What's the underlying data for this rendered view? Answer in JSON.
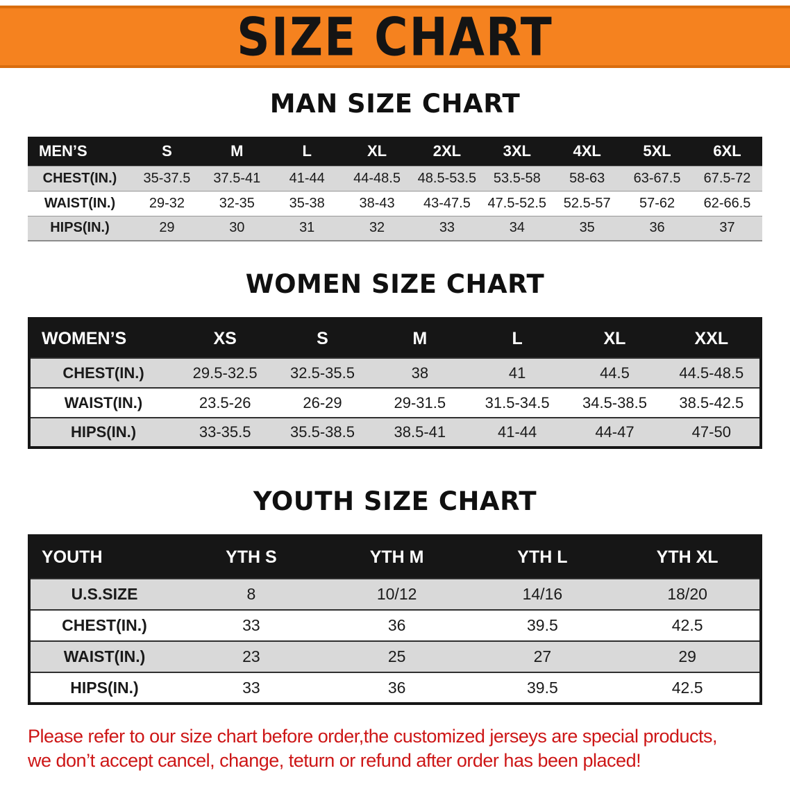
{
  "banner": {
    "title": "SIZE CHART"
  },
  "colors": {
    "banner_orange": "#f5821f",
    "header_black": "#161616",
    "row_gray": "#d9d9d9",
    "disclaimer_red": "#cd1616"
  },
  "sections": [
    {
      "heading": "MAN SIZE CHART",
      "table": {
        "label": "MEN’S",
        "columns": [
          "S",
          "M",
          "L",
          "XL",
          "2XL",
          "3XL",
          "4XL",
          "5XL",
          "6XL"
        ],
        "rows": [
          {
            "label": "CHEST(IN.)",
            "values": [
              "35-37.5",
              "37.5-41",
              "41-44",
              "44-48.5",
              "48.5-53.5",
              "53.5-58",
              "58-63",
              "63-67.5",
              "67.5-72"
            ]
          },
          {
            "label": "WAIST(IN.)",
            "values": [
              "29-32",
              "32-35",
              "35-38",
              "38-43",
              "43-47.5",
              "47.5-52.5",
              "52.5-57",
              "57-62",
              "62-66.5"
            ]
          },
          {
            "label": "HIPS(IN.)",
            "values": [
              "29",
              "30",
              "31",
              "32",
              "33",
              "34",
              "35",
              "36",
              "37"
            ]
          }
        ]
      }
    },
    {
      "heading": "WOMEN SIZE CHART",
      "table": {
        "label": "WOMEN’S",
        "columns": [
          "XS",
          "S",
          "M",
          "L",
          "XL",
          "XXL"
        ],
        "rows": [
          {
            "label": "CHEST(IN.)",
            "values": [
              "29.5-32.5",
              "32.5-35.5",
              "38",
              "41",
              "44.5",
              "44.5-48.5"
            ]
          },
          {
            "label": "WAIST(IN.)",
            "values": [
              "23.5-26",
              "26-29",
              "29-31.5",
              "31.5-34.5",
              "34.5-38.5",
              "38.5-42.5"
            ]
          },
          {
            "label": "HIPS(IN.)",
            "values": [
              "33-35.5",
              "35.5-38.5",
              "38.5-41",
              "41-44",
              "44-47",
              "47-50"
            ]
          }
        ]
      }
    },
    {
      "heading": "YOUTH SIZE CHART",
      "table": {
        "label": "YOUTH",
        "columns": [
          "YTH S",
          "YTH M",
          "YTH L",
          "YTH XL"
        ],
        "rows": [
          {
            "label": "U.S.SIZE",
            "values": [
              "8",
              "10/12",
              "14/16",
              "18/20"
            ]
          },
          {
            "label": "CHEST(IN.)",
            "values": [
              "33",
              "36",
              "39.5",
              "42.5"
            ]
          },
          {
            "label": "WAIST(IN.)",
            "values": [
              "23",
              "25",
              "27",
              "29"
            ]
          },
          {
            "label": "HIPS(IN.)",
            "values": [
              "33",
              "36",
              "39.5",
              "42.5"
            ]
          }
        ]
      }
    }
  ],
  "disclaimer": {
    "line1": "Please refer to our size chart before order,the customized jerseys are special products,",
    "line2": "we don’t accept cancel, change, teturn or refund after order has been placed!"
  }
}
